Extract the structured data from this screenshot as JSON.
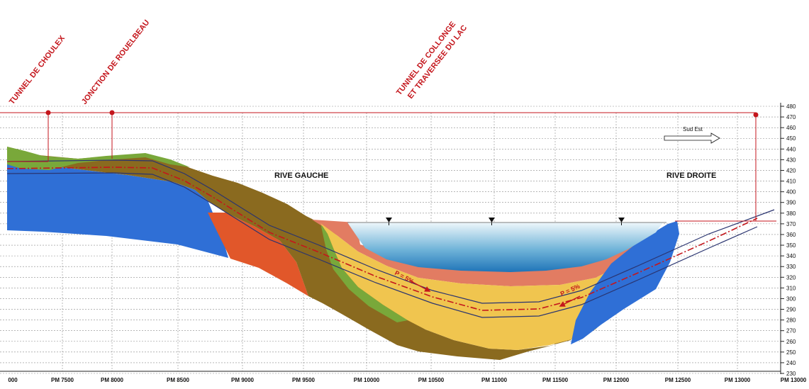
{
  "titles": {
    "choulex": "TUNNEL DE CHOULEX",
    "rouelbeau": "JONCTION DE ROUELBEAU",
    "collonge_line1": "TUNNEL DE COLLONGE",
    "collonge_line2": "ET TRAVERSEE DU LAC"
  },
  "banks": {
    "left": "RIVE GAUCHE",
    "right": "RIVE DROITE"
  },
  "direction": "Sud Est",
  "slopes": {
    "left": "P = 5%",
    "right": "P = 5%"
  },
  "elevation_axis": {
    "labels": [
      "480",
      "470",
      "460",
      "450",
      "440",
      "430",
      "420",
      "410",
      "400",
      "390",
      "380",
      "370",
      "360",
      "350",
      "340",
      "330",
      "320",
      "310",
      "300",
      "290",
      "280",
      "270",
      "260",
      "250",
      "240",
      "230"
    ]
  },
  "chainage_axis": {
    "labels": [
      "000",
      "PM 7500",
      "PM 8000",
      "PM 8500",
      "PM 9000",
      "PM 9500",
      "PM 10000",
      "PM 10500",
      "PM 11000",
      "PM 11500",
      "PM 12000",
      "PM 12500",
      "PM 13000",
      "PM 13000"
    ]
  },
  "colors": {
    "bedrock_blue": "#2f6fd6",
    "molasse_brown": "#8a6a1f",
    "moraine_green": "#79a83a",
    "gravel_orange": "#e1572a",
    "clay_salmon": "#e27c62",
    "sand_yellow": "#f0c54f",
    "lake_top": "#e9f4fa",
    "lake_bottom": "#2e86c1",
    "tunnel_red": "#c4161c",
    "tunnel_navy": "#2a3470"
  }
}
